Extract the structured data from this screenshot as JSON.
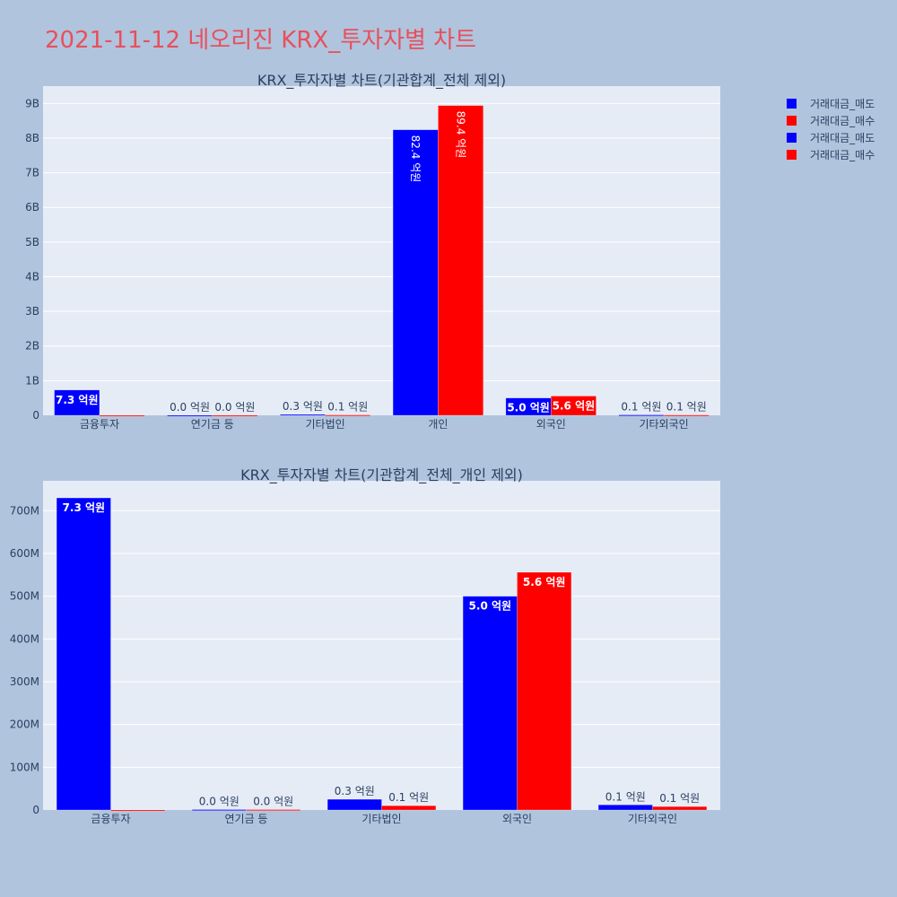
{
  "page": {
    "title": "2021-11-12 네오리진 KRX_투자자별 차트"
  },
  "legend": [
    {
      "label": "거래대금_매도",
      "color": "#0000ff"
    },
    {
      "label": "거래대금_매수",
      "color": "#ff0000"
    },
    {
      "label": "거래대금_매도",
      "color": "#0000ff"
    },
    {
      "label": "거래대금_매수",
      "color": "#ff0000"
    }
  ],
  "colors": {
    "plot_bg": "#e5ecf6",
    "page_bg": "#b0c4de",
    "sell": "#0000ff",
    "buy": "#ff0000",
    "text": "#2a3f5f"
  },
  "chart_data": [
    {
      "type": "bar",
      "title": "KRX_투자자별 차트(기관합계_전체 제외)",
      "categories": [
        "금융투자",
        "연기금 등",
        "기타법인",
        "개인",
        "외국인",
        "기타외국인"
      ],
      "series": [
        {
          "name": "거래대금_매도",
          "values": [
            730000000,
            1000000,
            25000000,
            8240000000,
            500000000,
            12000000
          ],
          "labels": [
            "7.3 억원",
            "0.0 억원",
            "0.3 억원",
            "82.4 억원",
            "5.0 억원",
            "0.1 억원"
          ]
        },
        {
          "name": "거래대금_매수",
          "values": [
            0,
            1000000,
            10000000,
            8940000000,
            556000000,
            8000000
          ],
          "labels": [
            "",
            "0.0 억원",
            "0.1 억원",
            "89.4 억원",
            "5.6 억원",
            "0.1 억원"
          ]
        }
      ],
      "ylim": [
        0,
        9500000000
      ],
      "yticks": [
        0,
        1000000000,
        2000000000,
        3000000000,
        4000000000,
        5000000000,
        6000000000,
        7000000000,
        8000000000,
        9000000000
      ],
      "ytick_labels": [
        "0",
        "1B",
        "2B",
        "3B",
        "4B",
        "5B",
        "6B",
        "7B",
        "8B",
        "9B"
      ],
      "grid": true
    },
    {
      "type": "bar",
      "title": "KRX_투자자별 차트(기관합계_전체_개인 제외)",
      "categories": [
        "금융투자",
        "연기금 등",
        "기타법인",
        "외국인",
        "기타외국인"
      ],
      "series": [
        {
          "name": "거래대금_매도",
          "values": [
            730000000,
            1000000,
            25000000,
            500000000,
            12000000
          ],
          "labels": [
            "7.3 억원",
            "0.0 억원",
            "0.3 억원",
            "5.0 억원",
            "0.1 억원"
          ]
        },
        {
          "name": "거래대금_매수",
          "values": [
            0,
            1000000,
            10000000,
            556000000,
            8000000
          ],
          "labels": [
            "",
            "0.0 억원",
            "0.1 억원",
            "5.6 억원",
            "0.1 억원"
          ]
        }
      ],
      "ylim": [
        0,
        770000000
      ],
      "yticks": [
        0,
        100000000,
        200000000,
        300000000,
        400000000,
        500000000,
        600000000,
        700000000
      ],
      "ytick_labels": [
        "0",
        "100M",
        "200M",
        "300M",
        "400M",
        "500M",
        "600M",
        "700M"
      ],
      "grid": true
    }
  ]
}
